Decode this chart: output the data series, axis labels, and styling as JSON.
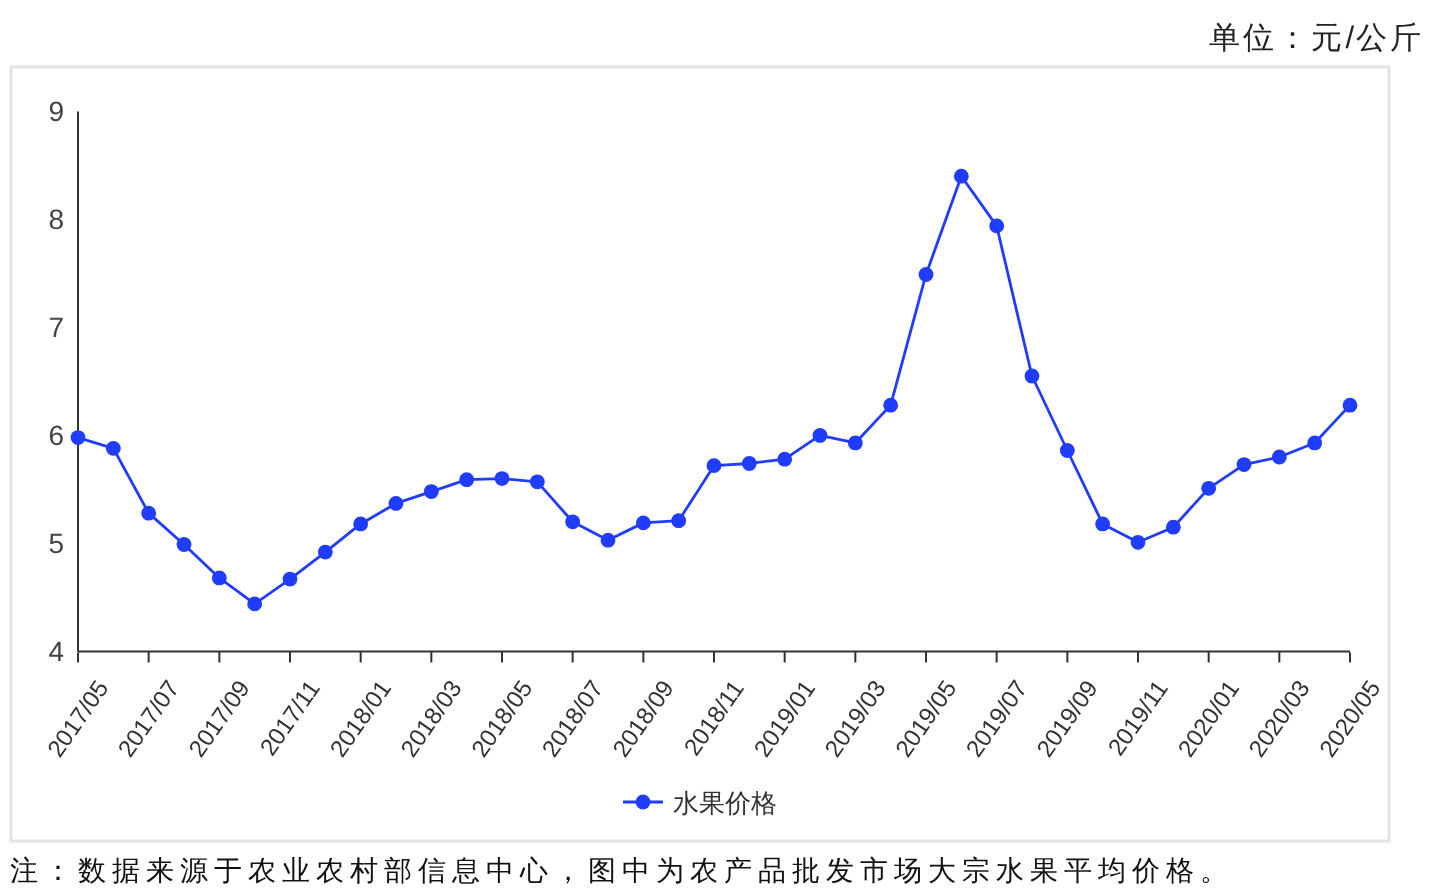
{
  "chart_data": {
    "type": "line",
    "ylabel": "单位：元/公斤",
    "annotations": [
      "注：数据来源于农业农村部信息中心，图中为农产品批发市场大宗水果平均价格。"
    ],
    "x": [
      "2017-05",
      "2017-06",
      "2017-07",
      "2017-08",
      "2017-09",
      "2017-10",
      "2017-11",
      "2017-12",
      "2018-01",
      "2018-02",
      "2018-03",
      "2018-04",
      "2018-05",
      "2018-06",
      "2018-07",
      "2018-08",
      "2018-09",
      "2018-10",
      "2018-11",
      "2018-12",
      "2019-01",
      "2019-02",
      "2019-03",
      "2019-04",
      "2019-05",
      "2019-06",
      "2019-07",
      "2019-08",
      "2019-09",
      "2019-10",
      "2019-11",
      "2019-12",
      "2020-01",
      "2020-02",
      "2020-03",
      "2020-04",
      "2020-05"
    ],
    "series": [
      {
        "name": "水果价格",
        "color": "#1f3cff",
        "values": [
          5.98,
          5.88,
          5.28,
          4.99,
          4.68,
          4.44,
          4.67,
          4.92,
          5.18,
          5.37,
          5.48,
          5.59,
          5.6,
          5.57,
          5.2,
          5.03,
          5.19,
          5.21,
          5.72,
          5.74,
          5.78,
          6.0,
          5.93,
          6.28,
          7.49,
          8.4,
          7.94,
          6.55,
          5.86,
          5.18,
          5.01,
          5.15,
          5.51,
          5.73,
          5.8,
          5.93,
          6.28
        ]
      }
    ],
    "xlim": [
      "2017-05",
      "2020-05"
    ],
    "xticks": [
      {
        "value": "2017-05",
        "label": "2017/05"
      },
      {
        "value": "2017-07",
        "label": "2017/07"
      },
      {
        "value": "2017-09",
        "label": "2017/09"
      },
      {
        "value": "2017-11",
        "label": "2017/11"
      },
      {
        "value": "2018-01",
        "label": "2018/01"
      },
      {
        "value": "2018-03",
        "label": "2018/03"
      },
      {
        "value": "2018-05",
        "label": "2018/05"
      },
      {
        "value": "2018-07",
        "label": "2018/07"
      },
      {
        "value": "2018-09",
        "label": "2018/09"
      },
      {
        "value": "2018-11",
        "label": "2018/11"
      },
      {
        "value": "2019-01",
        "label": "2019/01"
      },
      {
        "value": "2019-03",
        "label": "2019/03"
      },
      {
        "value": "2019-05",
        "label": "2019/05"
      },
      {
        "value": "2019-07",
        "label": "2019/07"
      },
      {
        "value": "2019-09",
        "label": "2019/09"
      },
      {
        "value": "2019-11",
        "label": "2019/11"
      },
      {
        "value": "2020-01",
        "label": "2020/01"
      },
      {
        "value": "2020-03",
        "label": "2020/03"
      },
      {
        "value": "2020-05",
        "label": "2020/05"
      }
    ],
    "ylim": [
      4,
      9
    ],
    "yticks": [
      4,
      5,
      6,
      7,
      8,
      9
    ],
    "legend": "bottom",
    "marker": "circle",
    "line_style": "solid"
  }
}
